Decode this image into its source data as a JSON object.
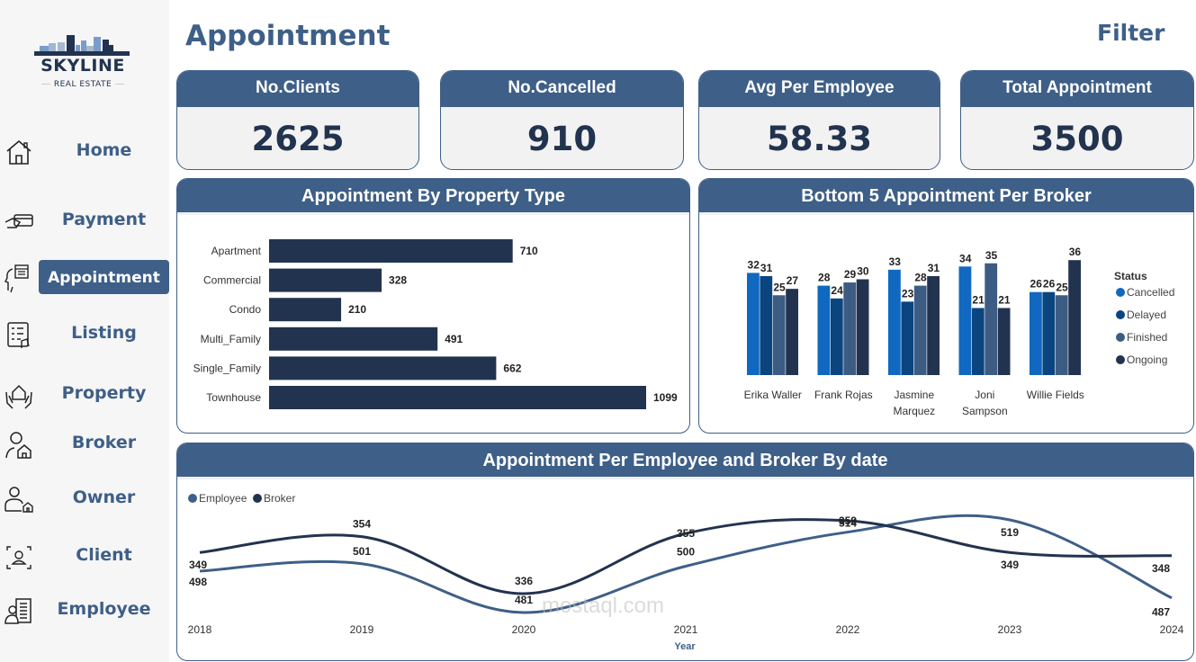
{
  "brand": {
    "name": "SKYLINE",
    "tagline": "REAL ESTATE"
  },
  "sidebar": {
    "items": [
      {
        "label": "Home",
        "icon": "house-icon",
        "active": false
      },
      {
        "label": "Payment",
        "icon": "card-in-hand-icon",
        "active": false
      },
      {
        "label": "Appointment",
        "icon": "head-calendar-icon",
        "active": true
      },
      {
        "label": "Listing",
        "icon": "checklist-icon",
        "active": false
      },
      {
        "label": "Property",
        "icon": "hands-house-icon",
        "active": false
      },
      {
        "label": "Broker",
        "icon": "person-house-icon",
        "active": false
      },
      {
        "label": "Owner",
        "icon": "owner-house-icon",
        "active": false
      },
      {
        "label": "Client",
        "icon": "client-frame-icon",
        "active": false
      },
      {
        "label": "Employee",
        "icon": "employee-building-icon",
        "active": false
      }
    ]
  },
  "header": {
    "title": "Appointment",
    "filter_label": "Filter"
  },
  "kpis": [
    {
      "label": "No.Clients",
      "value": "2625"
    },
    {
      "label": "No.Cancelled",
      "value": "910"
    },
    {
      "label": "Avg Per Employee",
      "value": "58.33"
    },
    {
      "label": "Total Appointment",
      "value": "3500"
    }
  ],
  "colors": {
    "header": "#3e5f87",
    "navy": "#22334f",
    "cancelled": "#1068c0",
    "delayed": "#0b4580",
    "finished": "#3d5c84",
    "ongoing": "#22334f",
    "employee_line": "#3e5f87",
    "broker_line": "#22334f"
  },
  "chart_data": [
    {
      "type": "bar",
      "orientation": "horizontal",
      "title": "Appointment By Property Type",
      "categories": [
        "Apartment",
        "Commercial",
        "Condo",
        "Multi_Family",
        "Single_Family",
        "Townhouse"
      ],
      "values": [
        710,
        328,
        210,
        491,
        662,
        1099
      ],
      "xlabel": "",
      "ylabel": "",
      "data_labels": true
    },
    {
      "type": "bar",
      "title": "Bottom 5 Appointment Per Broker",
      "categories": [
        "Erika Waller",
        "Frank Rojas",
        "Jasmine Marquez",
        "Joni Sampson",
        "Willie Fields"
      ],
      "category_lines": [
        [
          "Erika Waller"
        ],
        [
          "Frank Rojas"
        ],
        [
          "Jasmine",
          "Marquez"
        ],
        [
          "Joni",
          "Sampson"
        ],
        [
          "Willie Fields"
        ]
      ],
      "legend_title": "Status",
      "legend_position": "right",
      "series": [
        {
          "name": "Cancelled",
          "values": [
            32,
            28,
            33,
            34,
            26
          ]
        },
        {
          "name": "Delayed",
          "values": [
            31,
            24,
            23,
            21,
            26
          ]
        },
        {
          "name": "Finished",
          "values": [
            25,
            29,
            28,
            35,
            25
          ]
        },
        {
          "name": "Ongoing",
          "values": [
            27,
            30,
            31,
            21,
            36
          ]
        }
      ],
      "data_labels": true
    },
    {
      "type": "line",
      "title": "Appointment Per Employee and Broker By date",
      "x": [
        "2018",
        "2019",
        "2020",
        "2021",
        "2022",
        "2023",
        "2024"
      ],
      "xlabel": "Year",
      "legend_position": "top-left",
      "series": [
        {
          "name": "Employee",
          "values": [
            498,
            501,
            481,
            500,
            514,
            519,
            487
          ]
        },
        {
          "name": "Broker",
          "values": [
            349,
            354,
            336,
            355,
            359,
            349,
            348
          ]
        }
      ],
      "dual_axis": true,
      "data_labels": true
    }
  ],
  "watermark": {
    "text": "mostaql.com"
  }
}
